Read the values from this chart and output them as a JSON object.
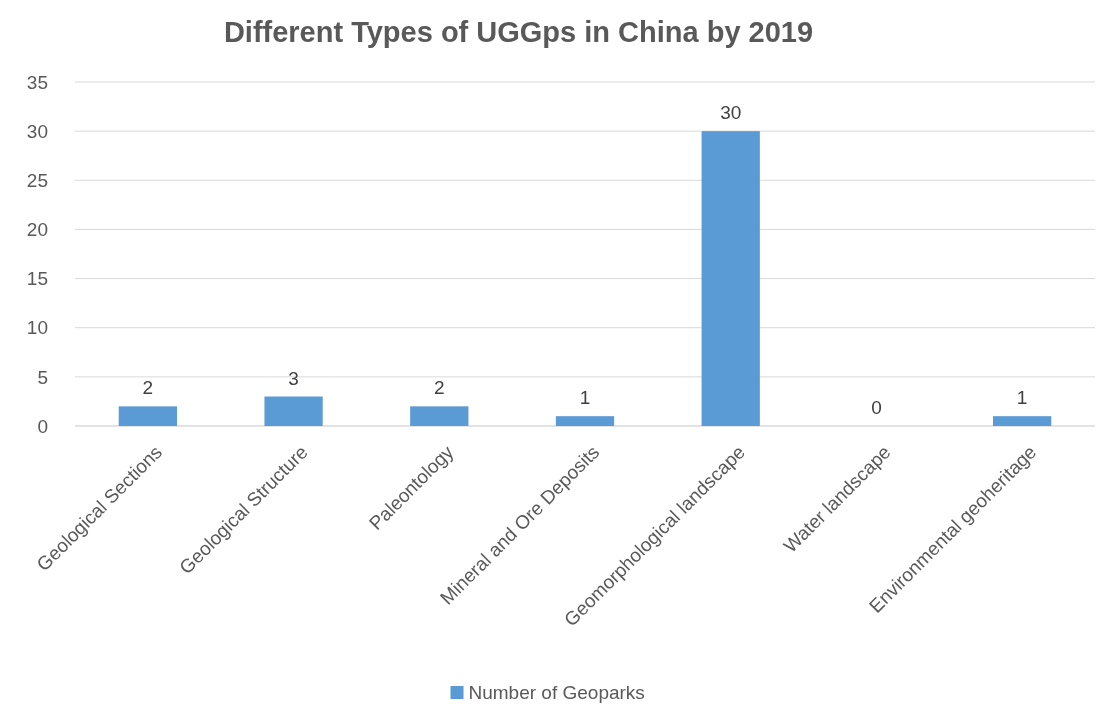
{
  "chart_data": {
    "type": "bar",
    "title": "Different Types of UGGps in China by 2019",
    "categories": [
      "Geological Sections",
      "Geological Structure",
      "Paleontology",
      "Mineral and Ore Deposits",
      "Geomorphological landscape",
      "Water landscape",
      "Environmental geoheritage"
    ],
    "series": [
      {
        "name": "Number of Geoparks",
        "color": "#5b9bd5",
        "values": [
          2,
          3,
          2,
          1,
          30,
          0,
          1
        ]
      }
    ],
    "ylim": [
      0,
      35
    ],
    "yticks": [
      0,
      5,
      10,
      15,
      20,
      25,
      30,
      35
    ],
    "grid": "y",
    "legend": "bottom",
    "data_labels": true
  }
}
